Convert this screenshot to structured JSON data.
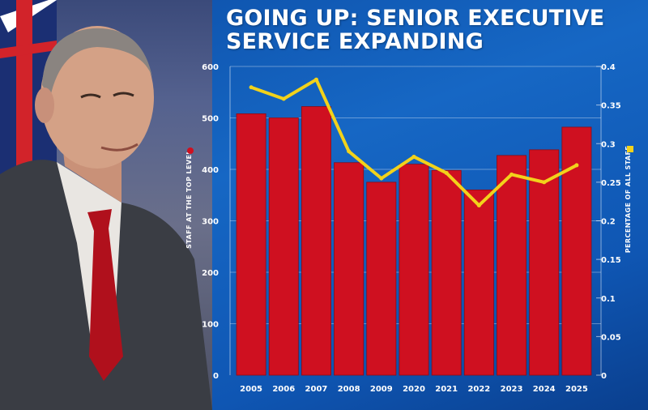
{
  "chart_data": {
    "type": "bar",
    "title": [
      "GOING UP: SENIOR EXECUTIVE",
      "SERVICE EXPANDING"
    ],
    "categories": [
      "2005",
      "2006",
      "2007",
      "2008",
      "2009",
      "2020",
      "2021",
      "2022",
      "2023",
      "2024",
      "2025"
    ],
    "series": [
      {
        "axis": "left",
        "type": "bar",
        "color": "#cf1020",
        "values": [
          508,
          500,
          522,
          413,
          375,
          410,
          398,
          360,
          427,
          438,
          482
        ]
      },
      {
        "axis": "right",
        "type": "line",
        "color": "#f2d21b",
        "values": [
          0.373,
          0.358,
          0.383,
          0.29,
          0.255,
          0.283,
          0.262,
          0.22,
          0.26,
          0.25,
          0.272
        ]
      }
    ],
    "ylabel_left": "STAFF AT THE TOP LEVEL",
    "ylabel_right": "PERCENTAGE OF ALL STAFF",
    "ylim_left": [
      0,
      600
    ],
    "ylim_right": [
      0,
      0.4
    ],
    "yticks_left": [
      "0",
      "100",
      "200",
      "300",
      "400",
      "500",
      "600"
    ],
    "yticks_right": [
      "0",
      "0.05",
      "0.1",
      "0.15",
      "0.2",
      "0.25",
      "0.3",
      "0.35",
      "0.4"
    ],
    "grid": true
  }
}
